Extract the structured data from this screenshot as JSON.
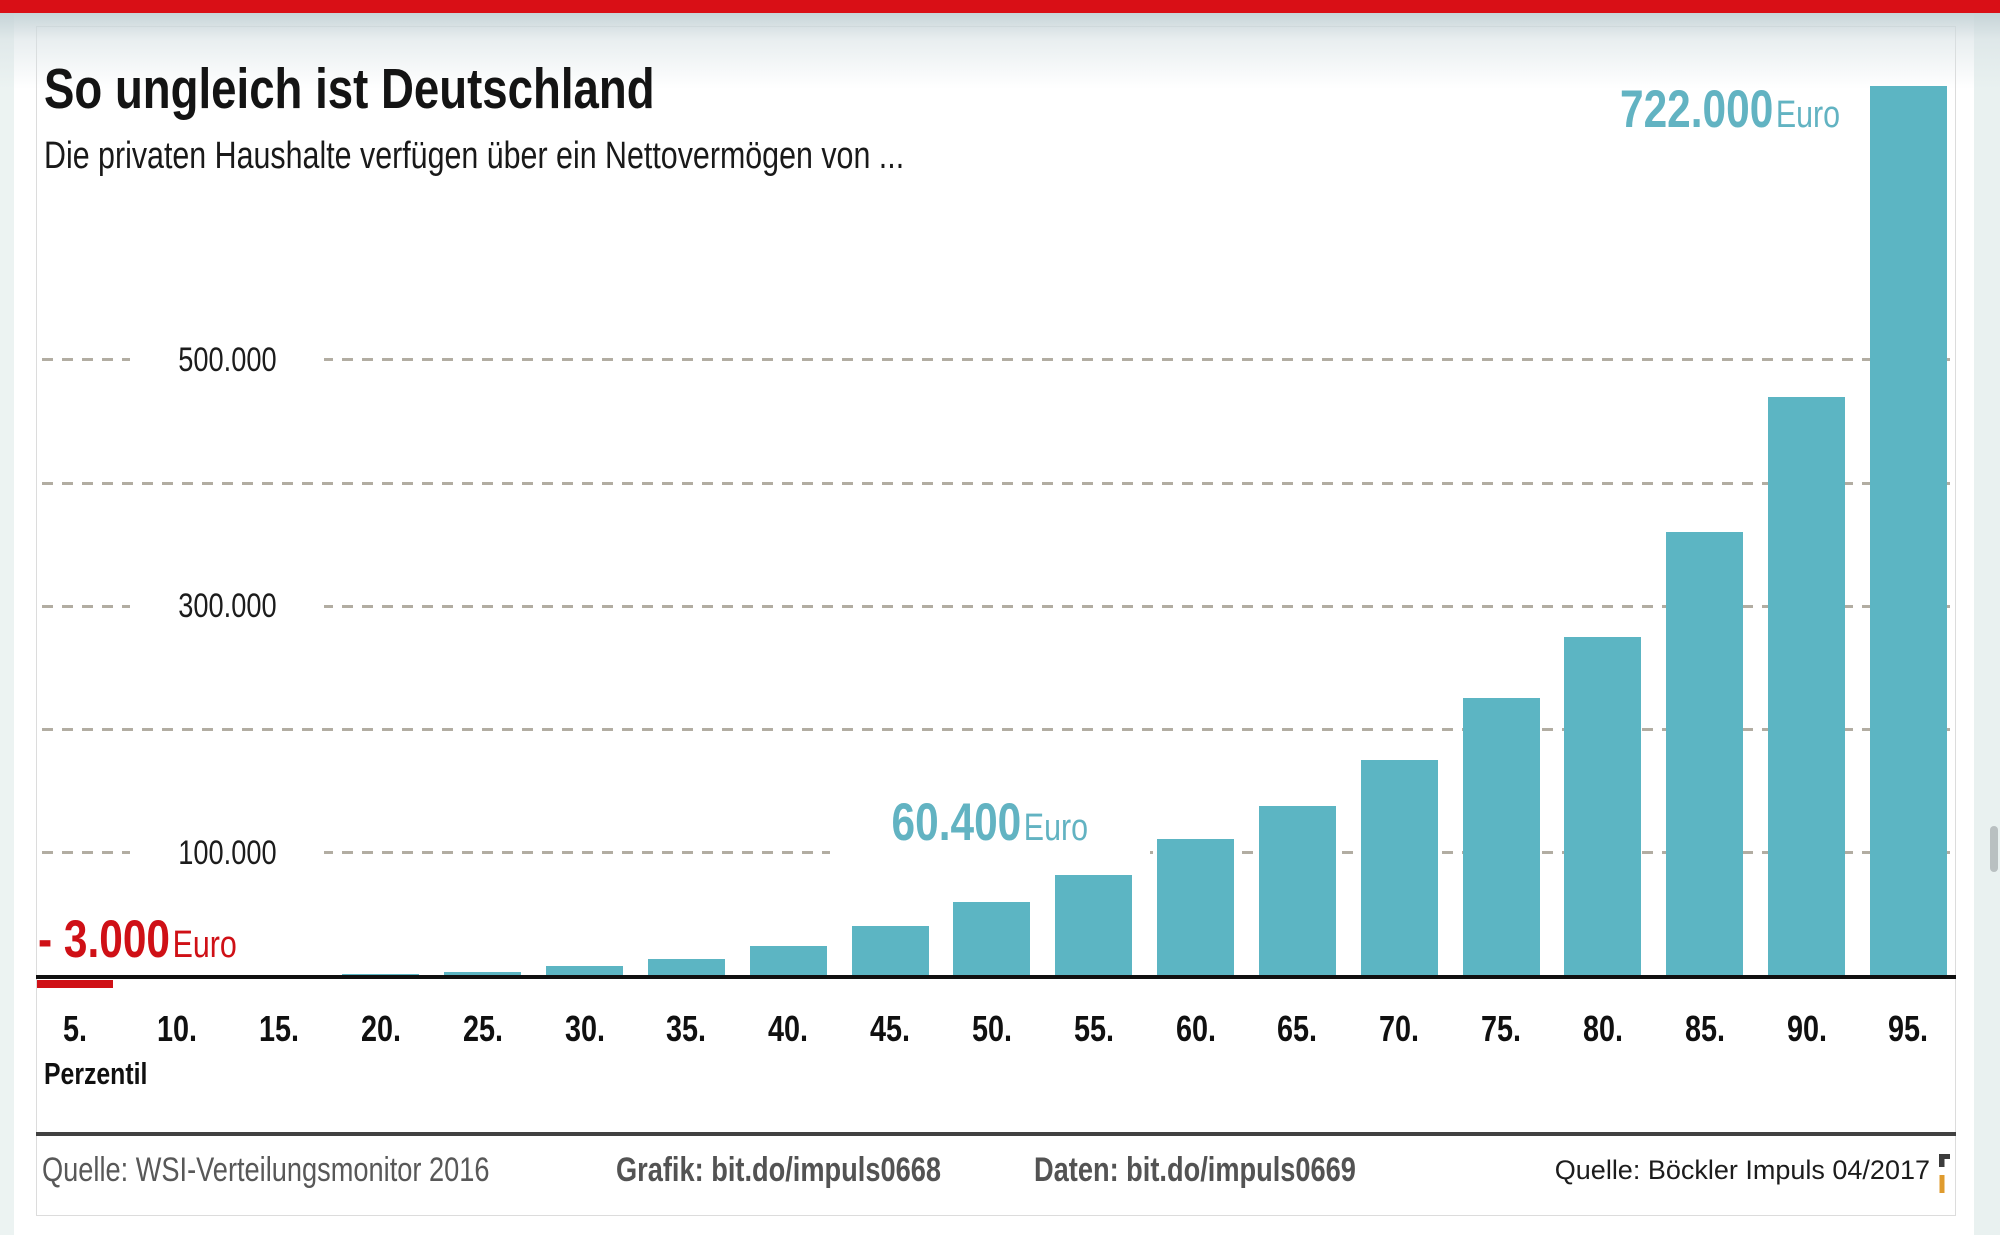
{
  "page": {
    "top_bar_color": "#d90f16",
    "card_background": "#ffffff"
  },
  "chart_data": {
    "type": "bar",
    "title": "So ungleich ist Deutschland",
    "subtitle": "Die privaten Haushalte verfügen über ein Nettovermögen von ...",
    "xlabel": "Perzentil",
    "unit": "Euro",
    "categories": [
      "5.",
      "10.",
      "15.",
      "20.",
      "25.",
      "30.",
      "35.",
      "40.",
      "45.",
      "50.",
      "55.",
      "60.",
      "65.",
      "70.",
      "75.",
      "80.",
      "85.",
      "90.",
      "95."
    ],
    "values": [
      -3000,
      0,
      0,
      1400,
      3500,
      8100,
      14100,
      24600,
      40500,
      60400,
      82000,
      111000,
      138000,
      175000,
      226000,
      275000,
      360000,
      470000,
      722000
    ],
    "ylim": [
      0,
      580000
    ],
    "grid": "dashed-horizontal",
    "gridline_values": [
      100000,
      200000,
      300000,
      400000,
      500000
    ],
    "labeled_gridlines": [
      {
        "value": 100000,
        "label": "100.000"
      },
      {
        "value": 300000,
        "label": "300.000"
      },
      {
        "value": 500000,
        "label": "500.000"
      }
    ],
    "bar_color": "#5cb5c3",
    "negative_bar_color": "#cf1016",
    "annotation_color": "#62b3c2",
    "negative_text_color": "#cf1016",
    "annotations": {
      "top": {
        "value": "722.000",
        "unit": "Euro",
        "target_category": "95."
      },
      "mid": {
        "value": "60.400",
        "unit": "Euro",
        "target_category": "50."
      },
      "neg": {
        "value": "- 3.000",
        "unit": "Euro",
        "target_category": "5."
      }
    }
  },
  "footer": {
    "source_left": "Quelle: WSI-Verteilungsmonitor 2016",
    "grafik": "Grafik: bit.do/impuls0668",
    "daten": "Daten: bit.do/impuls0669",
    "source_right": "Quelle: Böckler Impuls 04/2017",
    "logo_dark_color": "#3c3c3c",
    "logo_orange_color": "#df9b2e"
  }
}
